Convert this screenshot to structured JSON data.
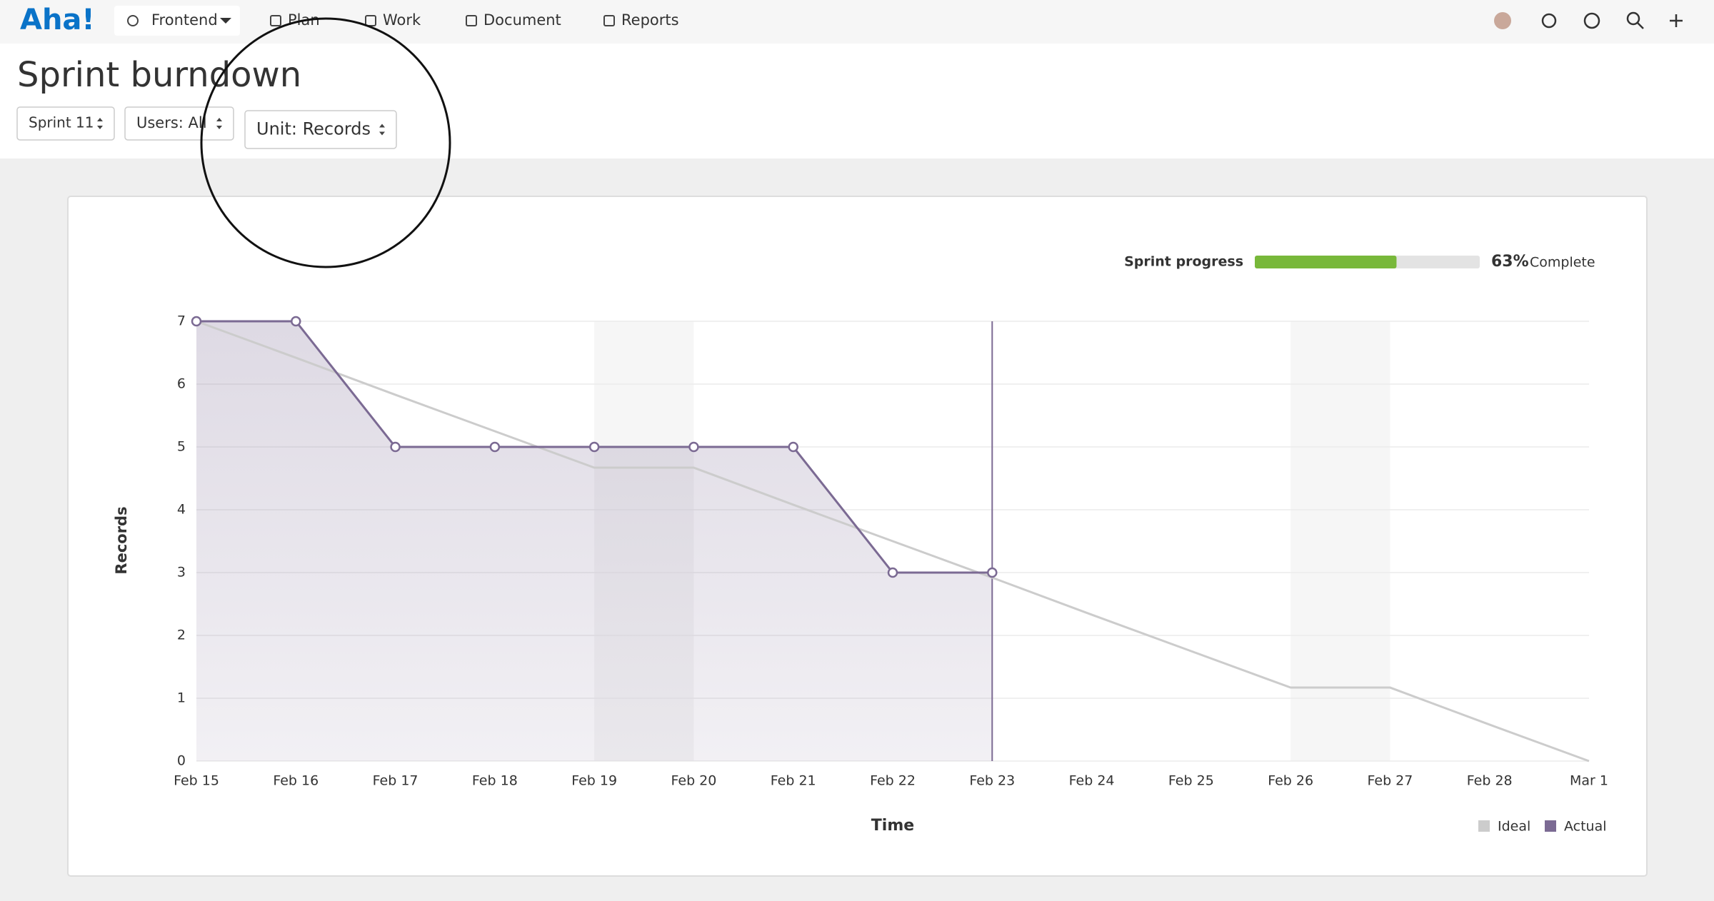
{
  "nav": {
    "logo": "Aha!",
    "workspace": "Frontend",
    "items": [
      "Plan",
      "Work",
      "Document",
      "Reports"
    ]
  },
  "page": {
    "title": "Sprint burndown",
    "filters": [
      "Sprint 11",
      "Users: All",
      "Unit: Records"
    ]
  },
  "progress": {
    "label": "Sprint progress",
    "value": 63,
    "value_label": "63%",
    "suffix": "Complete"
  },
  "chart_data": {
    "type": "line",
    "x_label": "Time",
    "y_label": "Records",
    "categories": [
      "Feb 15",
      "Feb 16",
      "Feb 17",
      "Feb 18",
      "Feb 19",
      "Feb 20",
      "Feb 21",
      "Feb 22",
      "Feb 23",
      "Feb 24",
      "Feb 25",
      "Feb 26",
      "Feb 27",
      "Feb 28",
      "Mar 1"
    ],
    "series": [
      {
        "name": "Ideal",
        "color": "#cccccc",
        "values": [
          7,
          6.42,
          5.83,
          5.25,
          4.67,
          4.67,
          4.08,
          3.5,
          2.92,
          2.33,
          1.75,
          1.17,
          1.17,
          0.58,
          0
        ]
      },
      {
        "name": "Actual",
        "color": "#7b6a93",
        "values": [
          7,
          7,
          5,
          5,
          5,
          5,
          5,
          3,
          3,
          null,
          null,
          null,
          null,
          null,
          null
        ]
      }
    ],
    "ylim": [
      0,
      7
    ],
    "yticks": [
      0,
      1,
      2,
      3,
      4,
      5,
      6,
      7
    ],
    "grid": true,
    "legend": "bottom-right"
  }
}
